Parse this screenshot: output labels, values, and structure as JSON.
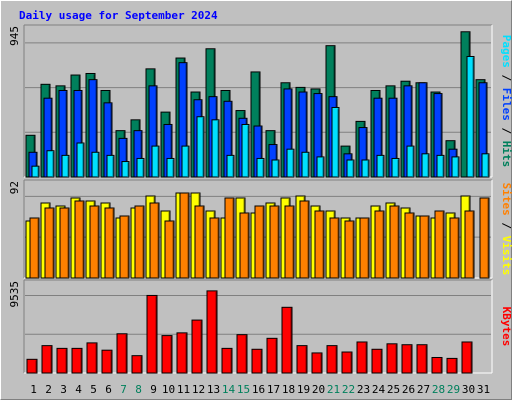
{
  "title": "Daily usage for September 2024",
  "colors": {
    "hits": "#00805c",
    "files": "#0040ff",
    "pages": "#00e0ff",
    "visits": "#ffff00",
    "sites": "#ff8000",
    "kbytes": "#ff0000",
    "weekend_label": "#00805c",
    "weekday_label": "#000000",
    "legend_sep": "#000000"
  },
  "legend": {
    "top": [
      {
        "text": "Pages",
        "color": "#00e0ff"
      },
      {
        "text": " / ",
        "color": "#000000"
      },
      {
        "text": "Files",
        "color": "#0040ff"
      },
      {
        "text": " / ",
        "color": "#000000"
      },
      {
        "text": "Hits",
        "color": "#00805c"
      }
    ],
    "middle": [
      {
        "text": "Sites",
        "color": "#ff8000"
      },
      {
        "text": " / ",
        "color": "#000000"
      },
      {
        "text": "Visits",
        "color": "#ffff00"
      }
    ],
    "bottom": [
      {
        "text": "KBytes",
        "color": "#ff0000"
      }
    ]
  },
  "chart_data": [
    {
      "type": "bar",
      "name": "hits-files-pages",
      "ymax_label": "945",
      "ylim": [
        0,
        945
      ],
      "categories": [
        "1",
        "2",
        "3",
        "4",
        "5",
        "6",
        "7",
        "8",
        "9",
        "10",
        "11",
        "12",
        "13",
        "14",
        "15",
        "16",
        "17",
        "18",
        "19",
        "20",
        "21",
        "22",
        "23",
        "24",
        "25",
        "26",
        "27",
        "28",
        "29",
        "30",
        "31"
      ],
      "weekend": [
        false,
        false,
        false,
        false,
        false,
        false,
        true,
        true,
        false,
        false,
        false,
        false,
        false,
        true,
        true,
        false,
        false,
        false,
        false,
        false,
        true,
        true,
        false,
        false,
        false,
        false,
        false,
        true,
        true,
        false,
        false
      ],
      "series": [
        {
          "name": "Hits",
          "values": [
            270,
            600,
            590,
            660,
            670,
            560,
            300,
            370,
            700,
            420,
            770,
            550,
            830,
            560,
            430,
            680,
            300,
            610,
            580,
            570,
            850,
            200,
            360,
            560,
            590,
            620,
            610,
            550,
            235,
            940,
            630
          ]
        },
        {
          "name": "Files",
          "values": [
            160,
            510,
            560,
            560,
            630,
            480,
            250,
            300,
            590,
            340,
            740,
            500,
            520,
            490,
            380,
            330,
            210,
            570,
            550,
            540,
            520,
            150,
            320,
            510,
            510,
            590,
            610,
            540,
            180,
            0,
            610
          ]
        },
        {
          "name": "Pages",
          "values": [
            70,
            170,
            140,
            220,
            160,
            140,
            100,
            120,
            200,
            120,
            200,
            390,
            370,
            140,
            340,
            120,
            110,
            180,
            160,
            130,
            450,
            110,
            110,
            140,
            120,
            200,
            150,
            140,
            130,
            780,
            150
          ]
        }
      ]
    },
    {
      "type": "bar",
      "name": "visits-sites",
      "ymax_label": "92",
      "ylim": [
        0,
        92
      ],
      "series": [
        {
          "name": "Visits",
          "values": [
            57,
            75,
            72,
            80,
            77,
            75,
            60,
            70,
            82,
            67,
            85,
            85,
            67,
            60,
            80,
            65,
            75,
            80,
            82,
            72,
            67,
            60,
            60,
            72,
            75,
            70,
            62,
            60,
            65,
            82,
            0
          ]
        },
        {
          "name": "Sites",
          "values": [
            60,
            70,
            70,
            77,
            72,
            70,
            62,
            72,
            75,
            57,
            85,
            72,
            60,
            80,
            65,
            72,
            72,
            72,
            77,
            67,
            60,
            57,
            60,
            67,
            72,
            65,
            62,
            67,
            60,
            67,
            80
          ]
        }
      ]
    },
    {
      "type": "bar",
      "name": "kbytes",
      "ymax_label": "9535",
      "ylim": [
        0,
        9535
      ],
      "series": [
        {
          "name": "KBytes",
          "values": [
            1500,
            3000,
            2700,
            2700,
            3300,
            2500,
            4300,
            1900,
            8500,
            4100,
            4400,
            5800,
            9000,
            2700,
            4200,
            2600,
            3800,
            7200,
            3000,
            2200,
            3000,
            2300,
            3400,
            2600,
            3200,
            3100,
            3100,
            1700,
            1600,
            3400,
            0
          ]
        }
      ]
    }
  ],
  "x_axis_labels": [
    "1",
    "2",
    "3",
    "4",
    "5",
    "6",
    "7",
    "8",
    "9",
    "10",
    "11",
    "12",
    "13",
    "14",
    "15",
    "16",
    "17",
    "18",
    "19",
    "20",
    "21",
    "22",
    "23",
    "24",
    "25",
    "26",
    "27",
    "28",
    "29",
    "30",
    "31"
  ]
}
